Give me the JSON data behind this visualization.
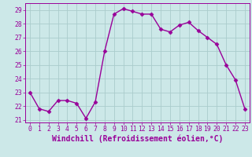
{
  "x": [
    0,
    1,
    2,
    3,
    4,
    5,
    6,
    7,
    8,
    9,
    10,
    11,
    12,
    13,
    14,
    15,
    16,
    17,
    18,
    19,
    20,
    21,
    22,
    23
  ],
  "y": [
    23.0,
    21.8,
    21.6,
    22.4,
    22.4,
    22.2,
    21.1,
    22.3,
    26.0,
    28.7,
    29.1,
    28.9,
    28.7,
    28.7,
    27.6,
    27.4,
    27.9,
    28.1,
    27.5,
    27.0,
    26.5,
    25.0,
    23.9,
    21.8
  ],
  "line_color": "#990099",
  "marker": "D",
  "marker_size": 2.5,
  "bg_color": "#cce8e8",
  "grid_color": "#aacccc",
  "xlabel": "Windchill (Refroidissement éolien,°C)",
  "xlabel_color": "#990099",
  "ylim": [
    20.8,
    29.5
  ],
  "xlim": [
    -0.5,
    23.5
  ],
  "yticks": [
    21,
    22,
    23,
    24,
    25,
    26,
    27,
    28,
    29
  ],
  "xticks": [
    0,
    1,
    2,
    3,
    4,
    5,
    6,
    7,
    8,
    9,
    10,
    11,
    12,
    13,
    14,
    15,
    16,
    17,
    18,
    19,
    20,
    21,
    22,
    23
  ],
  "tick_color": "#990099",
  "tick_labelsize": 5.8,
  "xlabel_fontsize": 7.0,
  "line_width": 1.0
}
